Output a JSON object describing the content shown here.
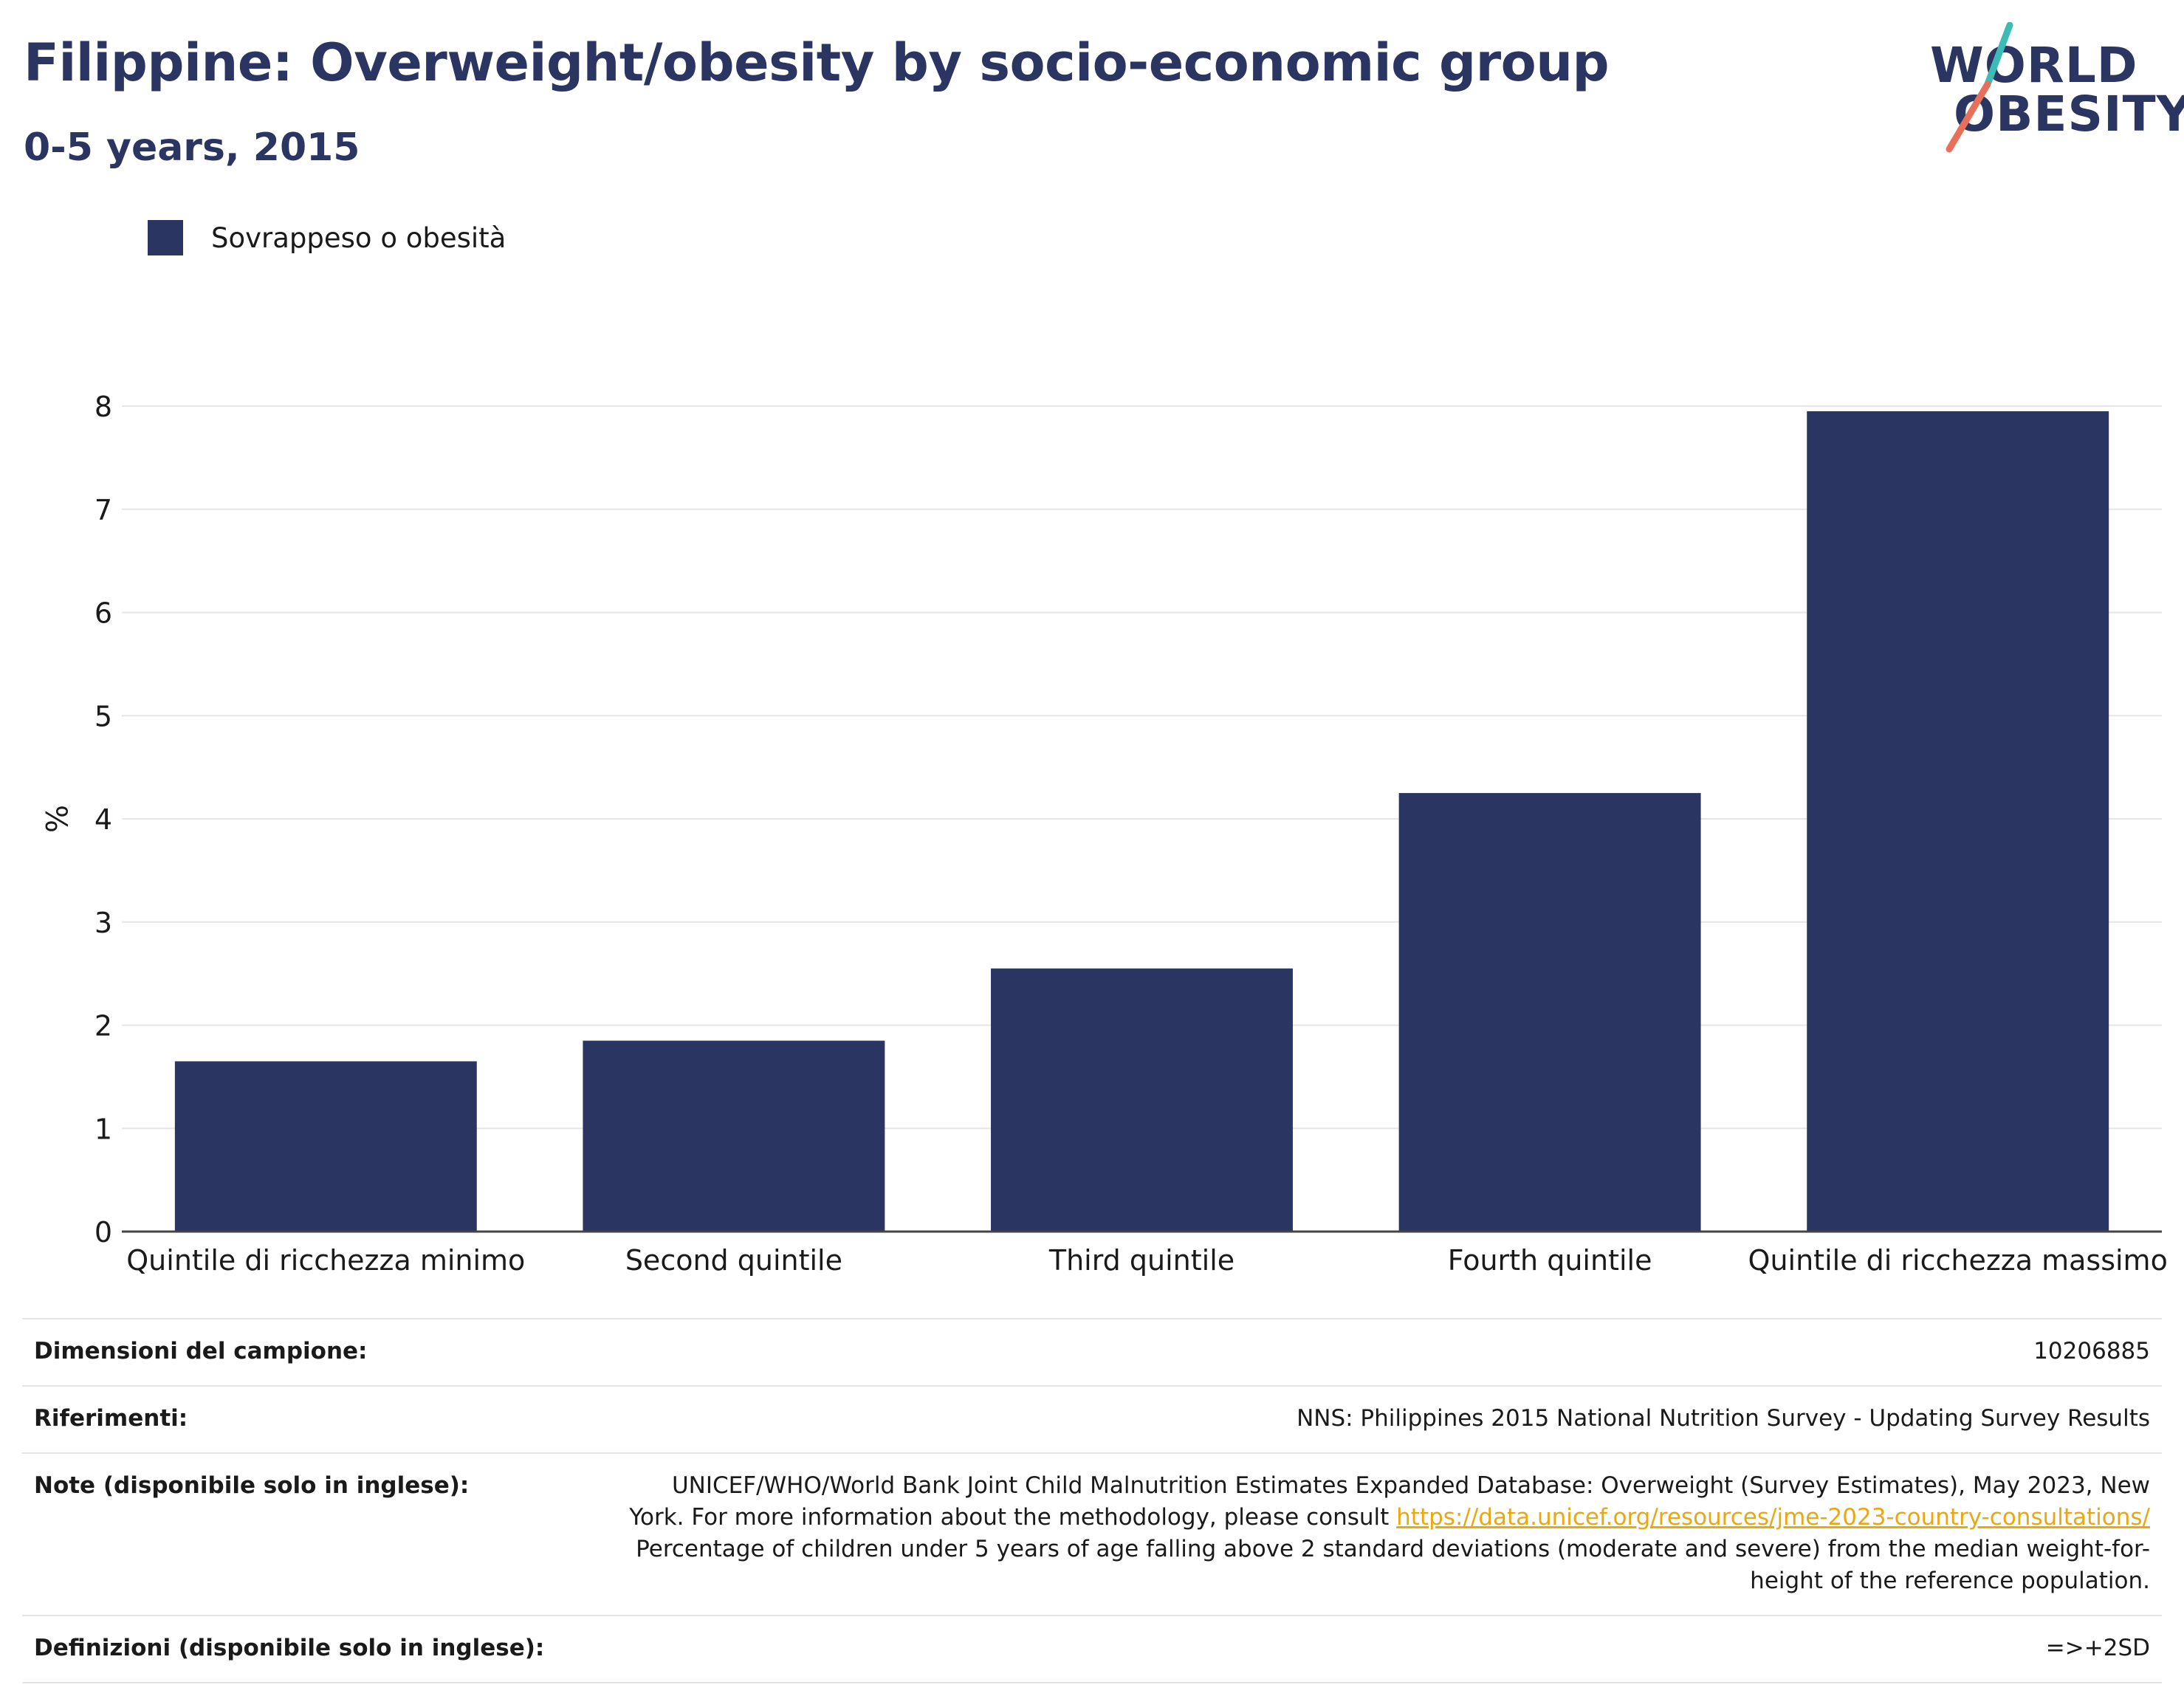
{
  "header": {
    "title": "Filippine: Overweight/obesity by socio-economic group",
    "subtitle": "0-5 years, 2015"
  },
  "logo": {
    "line1": "WORLD",
    "line2": "OBESITY",
    "colors": {
      "text": "#2b3562",
      "slash_top": "#3cbcb4",
      "slash_bottom": "#e8705a"
    }
  },
  "legend": {
    "label": "Sovrappeso o obesità",
    "color": "#2b3562"
  },
  "chart_data": {
    "type": "bar",
    "categories": [
      "Quintile di ricchezza minimo",
      "Second quintile",
      "Third quintile",
      "Fourth quintile",
      "Quintile di ricchezza massimo"
    ],
    "series": [
      {
        "name": "Sovrappeso o obesità",
        "values": [
          1.65,
          1.85,
          2.55,
          4.25,
          7.95
        ],
        "color": "#2b3562"
      }
    ],
    "title": "Filippine: Overweight/obesity by socio-economic group",
    "subtitle": "0-5 years, 2015",
    "xlabel": "",
    "ylabel": "%",
    "ylim": [
      0,
      8
    ],
    "yticks": [
      0,
      1,
      2,
      3,
      4,
      5,
      6,
      7,
      8
    ],
    "grid": true,
    "legend_position": "top-left"
  },
  "info": {
    "sample_label": "Dimensioni del campione:",
    "sample_value": "10206885",
    "ref_label": "Riferimenti:",
    "ref_value": "NNS: Philippines 2015 National Nutrition Survey - Updating Survey Results",
    "notes_label": "Note (disponibile solo in inglese):",
    "notes_text1": "UNICEF/WHO/World Bank Joint Child Malnutrition Estimates Expanded Database: Overweight (Survey Estimates), May 2023, New York. For more information about the methodology, please consult ",
    "notes_link": "https://data.unicef.org/resources/jme-2023-country-consultations/",
    "notes_text2": " Percentage of children under 5 years of age falling above 2 standard deviations (moderate and severe) from the median weight-for-height of the reference population.",
    "def_label": "Definizioni (disponibile solo in inglese):",
    "def_value": "=>+2SD"
  }
}
